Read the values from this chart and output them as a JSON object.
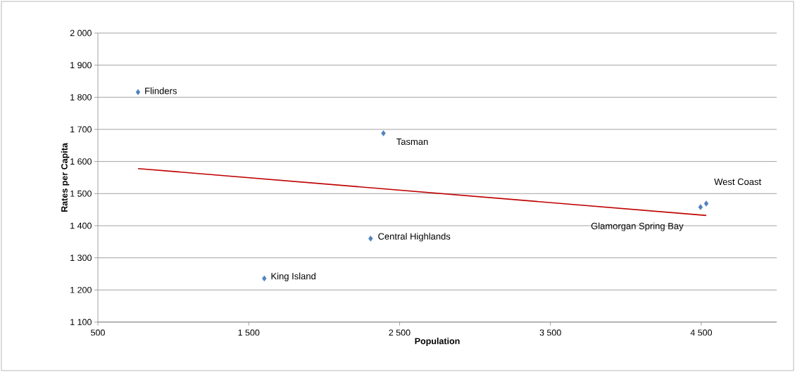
{
  "chart_data": {
    "type": "scatter",
    "xlabel": "Population",
    "ylabel": "Rates per Capita",
    "series": [
      {
        "color": "#4f81bd",
        "marker": "diamond",
        "x": [
          766,
          2393,
          2308,
          1603,
          4533,
          4495
        ],
        "values": [
          1816,
          1688,
          1360,
          1236,
          1469,
          1458
        ]
      },
      {
        "type": "line",
        "color": "#c00000",
        "marker": "none",
        "line_style": "solid",
        "x": [
          766,
          4533
        ],
        "values": [
          1578,
          1432
        ]
      }
    ],
    "annotations": [
      "Flinders",
      "Tasman",
      "Central Highlands",
      "King Island",
      "West Coast",
      "Glamorgan Spring Bay"
    ],
    "xlim": [
      500,
      5000
    ],
    "ylim": [
      1100,
      2000
    ],
    "xticks": [
      {
        "value": 500,
        "label": "500"
      },
      {
        "value": 1500,
        "label": "1 500"
      },
      {
        "value": 2500,
        "label": "2 500"
      },
      {
        "value": 3500,
        "label": "3 500"
      },
      {
        "value": 4500,
        "label": "4 500"
      }
    ],
    "yticks": [
      {
        "value": 1100,
        "label": "1 100"
      },
      {
        "value": 1200,
        "label": "1 200"
      },
      {
        "value": 1300,
        "label": "1 300"
      },
      {
        "value": 1400,
        "label": "1 400"
      },
      {
        "value": 1500,
        "label": "1 500"
      },
      {
        "value": 1600,
        "label": "1 600"
      },
      {
        "value": 1700,
        "label": "1 700"
      },
      {
        "value": 1800,
        "label": "1 800"
      },
      {
        "value": 1900,
        "label": "1 900"
      },
      {
        "value": 2000,
        "label": "2 000"
      }
    ],
    "grid": "y"
  }
}
